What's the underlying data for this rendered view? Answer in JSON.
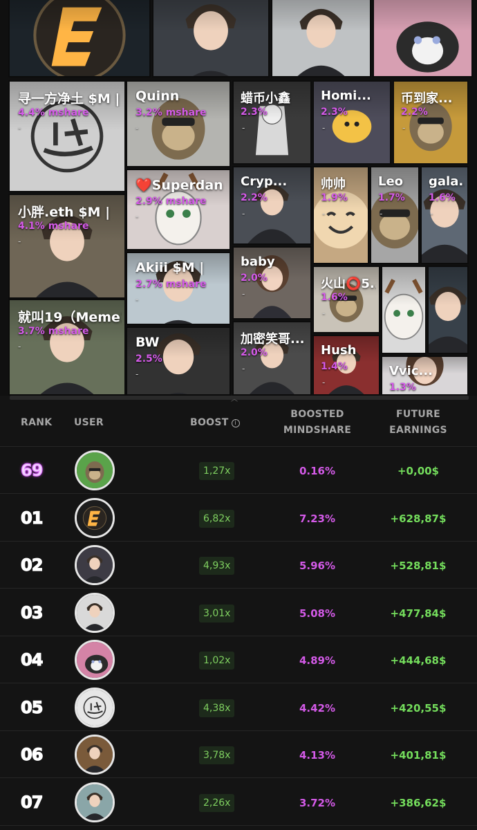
{
  "treemap": {
    "tiles": [
      {
        "name": "",
        "share": "",
        "color": "#1c2329",
        "icon": "e-logo"
      },
      {
        "name": "",
        "share": "",
        "color": "#3b3f45",
        "icon": "anime-boy"
      },
      {
        "name": "",
        "share": "",
        "color": "#bfc2c4",
        "icon": "anime-boy"
      },
      {
        "name": "",
        "share": "",
        "color": "#d79fb2",
        "icon": "cat"
      },
      {
        "name": "寻一方净土 $M |",
        "share": "4.4% mshare",
        "dash": "-",
        "color": "#cfcfcf",
        "icon": "calligraphy"
      },
      {
        "name": "Quinn",
        "share": "3.2% mshare",
        "dash": "-",
        "color": "#b4b4b0",
        "icon": "ape"
      },
      {
        "name": "蜡币小鑫",
        "share": "2.3%",
        "dash": "-",
        "color": "#3a3a3a",
        "icon": "sketch"
      },
      {
        "name": "Homi...",
        "share": "2.3%",
        "dash": "-",
        "color": "#4d4c5a",
        "icon": "creature"
      },
      {
        "name": "币到家...",
        "share": "2.2%",
        "dash": "-",
        "color": "#c69a3b",
        "icon": "ape"
      },
      {
        "name": "❤️Superdan $M",
        "share": "2.9% mshare",
        "dash": "-",
        "color": "#d9d0cf",
        "icon": "deer"
      },
      {
        "name": "Cryp...",
        "share": "2.2%",
        "dash": "-",
        "color": "#4a4e55",
        "icon": "anime-boy"
      },
      {
        "name": "帅帅",
        "share": "1.9%",
        "dash": "-",
        "color": "#c5a882",
        "icon": "smile"
      },
      {
        "name": "Leo",
        "share": "1.7%",
        "dash": "-",
        "color": "#a6a6a6",
        "icon": "ape"
      },
      {
        "name": "gala...",
        "share": "1.6%",
        "dash": "-",
        "color": "#5e6874",
        "icon": "anime-boy"
      },
      {
        "name": "小胖.eth $M |",
        "share": "4.1% mshare",
        "dash": "-",
        "color": "#6f6656",
        "icon": "anime-boy"
      },
      {
        "name": "Akiii $M |",
        "share": "2.7% mshare",
        "dash": "-",
        "color": "#bcc8cf",
        "icon": "anime-boy"
      },
      {
        "name": "baby",
        "share": "2.0%",
        "dash": "-",
        "color": "#6e6660",
        "icon": "anime-girl"
      },
      {
        "name": "火山⭕5...",
        "share": "1.6%",
        "dash": "-",
        "color": "#c9c3b8",
        "icon": "ape"
      },
      {
        "name": "",
        "share": "",
        "color": "#dadada",
        "icon": "deer"
      },
      {
        "name": "",
        "share": "",
        "color": "#38414a",
        "icon": "anime-boy"
      },
      {
        "name": "就叫19（Meme100X",
        "share": "3.7% mshare",
        "dash": "-",
        "color": "#67705a",
        "icon": "anime-boy"
      },
      {
        "name": "BW",
        "share": "2.5%",
        "dash": "-",
        "color": "#323232",
        "icon": "anime-boy"
      },
      {
        "name": "加密笑哥...",
        "share": "2.0%",
        "dash": "-",
        "color": "#4b4b4b",
        "icon": "anime-boy"
      },
      {
        "name": "Hush",
        "share": "1.4%",
        "dash": "-",
        "color": "#8a2f2f",
        "icon": "anime-boy"
      },
      {
        "name": "Vvic...",
        "share": "1.3%",
        "dash": "-",
        "color": "#d9d6d8",
        "icon": "anime-girl"
      }
    ]
  },
  "table": {
    "headers": {
      "rank": "RANK",
      "user": "USER",
      "boost": "BOOST",
      "boost_info_icon": "info-icon",
      "boosted_mindshare": "BOOSTED MINDSHARE",
      "future_earnings": "FUTURE EARNINGS"
    },
    "rows": [
      {
        "rank": "69",
        "boost": "1,27x",
        "boosted_mindshare": "0.16%",
        "future_earnings": "+0,00$",
        "avatar_color": "#5aa34a",
        "avatar_icon": "ape-avatar",
        "is_me": true
      },
      {
        "rank": "01",
        "boost": "6,82x",
        "boosted_mindshare": "7.23%",
        "future_earnings": "+628,87$",
        "avatar_color": "#1d1d1d",
        "avatar_icon": "e-logo-avatar",
        "is_me": false
      },
      {
        "rank": "02",
        "boost": "4,93x",
        "boosted_mindshare": "5.96%",
        "future_earnings": "+528,81$",
        "avatar_color": "#3d3b44",
        "avatar_icon": "anime-boy-avatar",
        "is_me": false
      },
      {
        "rank": "03",
        "boost": "3,01x",
        "boosted_mindshare": "5.08%",
        "future_earnings": "+477,84$",
        "avatar_color": "#d9d9d9",
        "avatar_icon": "anime-boy-avatar",
        "is_me": false
      },
      {
        "rank": "04",
        "boost": "1,02x",
        "boosted_mindshare": "4.89%",
        "future_earnings": "+444,68$",
        "avatar_color": "#d483a6",
        "avatar_icon": "cat-avatar",
        "is_me": false
      },
      {
        "rank": "05",
        "boost": "4,38x",
        "boosted_mindshare": "4.42%",
        "future_earnings": "+420,55$",
        "avatar_color": "#e7e7e7",
        "avatar_icon": "calligraphy-avatar",
        "is_me": false
      },
      {
        "rank": "06",
        "boost": "3,78x",
        "boosted_mindshare": "4.13%",
        "future_earnings": "+401,81$",
        "avatar_color": "#7a5a3a",
        "avatar_icon": "anime-boy-avatar",
        "is_me": false
      },
      {
        "rank": "07",
        "boost": "2,26x",
        "boosted_mindshare": "3.72%",
        "future_earnings": "+386,62$",
        "avatar_color": "#8aa6a8",
        "avatar_icon": "anime-boy-avatar",
        "is_me": false
      }
    ]
  }
}
